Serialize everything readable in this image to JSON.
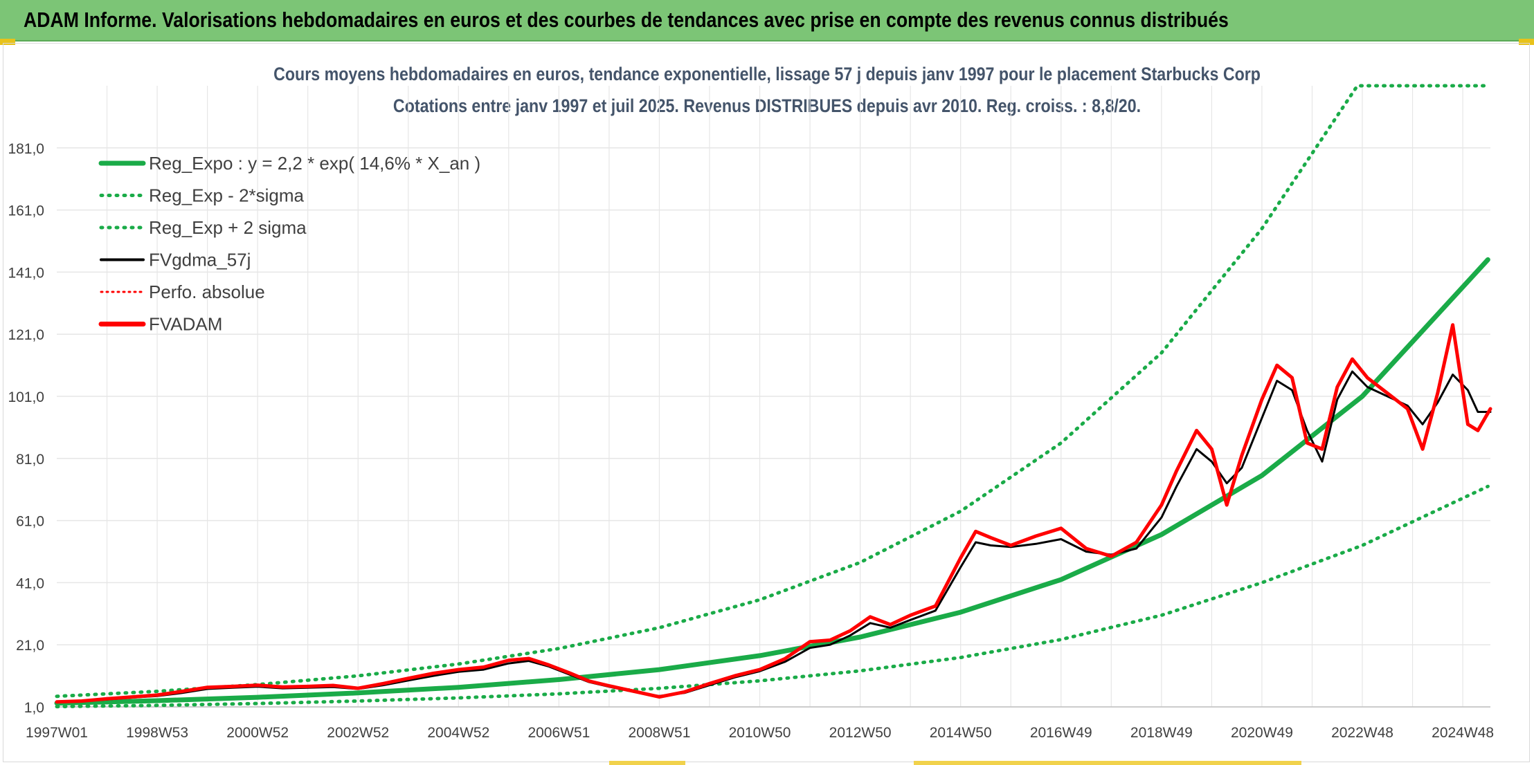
{
  "header": {
    "title": "ADAM Informe. Valorisations hebdomadaires en euros et des courbes de tendances avec prise en compte des revenus connus distribués"
  },
  "colors": {
    "header_bg": "#7cc576",
    "trend": "#1aab48",
    "smoothed": "#000000",
    "fvadam": "#ff0000",
    "axis_text": "#404040",
    "title_text": "#44546a",
    "grid": "#e6e6e6"
  },
  "chart_data": {
    "type": "line",
    "title": "Cours moyens hebdomadaires en euros, tendance exponentielle, lissage 57 j depuis janv 1997 pour le placement Starbucks Corp",
    "subtitle": "Cotations entre janv 1997 et juil 2025. Revenus DISTRIBUES depuis avr 2010. Reg. croiss. : 8,8/20.",
    "xlabel": "",
    "ylabel": "",
    "xlim": [
      1997.0,
      2025.55
    ],
    "ylim": [
      1.0,
      201.0
    ],
    "y_ticks": [
      "1,0",
      "21,0",
      "41,0",
      "61,0",
      "81,0",
      "101,0",
      "121,0",
      "141,0",
      "161,0",
      "181,0"
    ],
    "y_tick_values": [
      1,
      21,
      41,
      61,
      81,
      101,
      121,
      141,
      161,
      181
    ],
    "x_ticks": [
      "1997W01",
      "1998W53",
      "2000W52",
      "2002W52",
      "2004W52",
      "2006W51",
      "2008W51",
      "2010W50",
      "2012W50",
      "2014W50",
      "2016W49",
      "2018W49",
      "2020W49",
      "2022W48",
      "2024W48"
    ],
    "x_tick_values": [
      1997.0,
      1999.0,
      2001.0,
      2003.0,
      2005.0,
      2007.0,
      2009.0,
      2011.0,
      2013.0,
      2015.0,
      2017.0,
      2019.0,
      2021.0,
      2023.0,
      2025.0
    ],
    "grid": true,
    "legend_position": "top-left",
    "legend": [
      {
        "label": "Reg_Expo : y = 2,2 * exp( 14,6% *  X_an )",
        "style": "solid-thick",
        "color": "#1aab48"
      },
      {
        "label": "Reg_Exp - 2*sigma",
        "style": "dotted",
        "color": "#1aab48"
      },
      {
        "label": "Reg_Exp + 2 sigma",
        "style": "dotted",
        "color": "#1aab48"
      },
      {
        "label": "FVgdma_57j",
        "style": "solid",
        "color": "#000000"
      },
      {
        "label": "Perfo. absolue",
        "style": "dotted",
        "color": "#ff0000"
      },
      {
        "label": "FVADAM",
        "style": "solid-thick",
        "color": "#ff0000"
      }
    ],
    "series": [
      {
        "name": "Reg_Expo : y = 2,2 * exp( 14,6% *  X_an )",
        "x": [
          1997.0,
          1999.0,
          2001.0,
          2003.0,
          2005.0,
          2007.0,
          2009.0,
          2011.0,
          2013.0,
          2015.0,
          2017.0,
          2019.0,
          2021.0,
          2023.0,
          2025.5
        ],
        "values": [
          2.2,
          3.0,
          4.1,
          5.5,
          7.3,
          9.8,
          13.0,
          17.5,
          23.5,
          31.5,
          42.0,
          56.5,
          75.5,
          101.0,
          145.0
        ]
      },
      {
        "name": "Reg_Exp - 2*sigma",
        "x": [
          1997.0,
          1999.0,
          2001.0,
          2003.0,
          2005.0,
          2007.0,
          2009.0,
          2011.0,
          2013.0,
          2015.0,
          2017.0,
          2019.0,
          2021.0,
          2023.0,
          2025.5
        ],
        "values": [
          1.1,
          1.5,
          2.1,
          2.9,
          3.9,
          5.2,
          7.0,
          9.4,
          12.6,
          16.9,
          22.7,
          30.5,
          41.0,
          53.0,
          72.0
        ]
      },
      {
        "name": "Reg_Exp + 2 sigma",
        "x": [
          1997.0,
          1999.0,
          2001.0,
          2003.0,
          2005.0,
          2007.0,
          2009.0,
          2011.0,
          2013.0,
          2015.0,
          2017.0,
          2019.0,
          2021.0,
          2022.9,
          2025.5
        ],
        "values": [
          4.4,
          6.0,
          8.2,
          11.0,
          14.8,
          19.8,
          26.5,
          35.5,
          47.5,
          64.0,
          86.0,
          115.0,
          155.0,
          201.0,
          201.0
        ]
      },
      {
        "name": "FVgdma_57j",
        "x": [
          1997.0,
          1997.5,
          1998.0,
          1998.5,
          1999.0,
          1999.5,
          2000.0,
          2000.5,
          2001.0,
          2001.5,
          2002.0,
          2002.5,
          2003.0,
          2003.5,
          2004.0,
          2004.5,
          2005.0,
          2005.5,
          2006.0,
          2006.4,
          2006.8,
          2007.2,
          2007.6,
          2008.0,
          2008.5,
          2009.0,
          2009.5,
          2010.0,
          2010.5,
          2011.0,
          2011.5,
          2012.0,
          2012.4,
          2012.8,
          2013.2,
          2013.6,
          2014.0,
          2014.5,
          2015.0,
          2015.3,
          2015.6,
          2016.0,
          2016.5,
          2017.0,
          2017.5,
          2018.0,
          2018.5,
          2019.0,
          2019.3,
          2019.7,
          2020.0,
          2020.3,
          2020.6,
          2021.0,
          2021.3,
          2021.6,
          2021.9,
          2022.2,
          2022.5,
          2022.8,
          2023.1,
          2023.5,
          2023.9,
          2024.2,
          2024.5,
          2024.8,
          2025.1,
          2025.3,
          2025.55
        ],
        "values": [
          2.5,
          2.8,
          3.4,
          4.0,
          4.5,
          5.5,
          6.8,
          7.2,
          7.5,
          7.0,
          7.2,
          7.4,
          6.8,
          8.0,
          9.5,
          11.0,
          12.3,
          13.0,
          15.0,
          15.8,
          14.0,
          11.5,
          9.0,
          7.5,
          5.8,
          4.5,
          5.5,
          8.0,
          10.5,
          12.5,
          15.5,
          20.0,
          21.0,
          24.0,
          28.0,
          26.5,
          29.0,
          32.0,
          46.0,
          54.0,
          53.0,
          52.5,
          53.5,
          55.0,
          51.0,
          50.0,
          52.0,
          62.0,
          72.0,
          84.0,
          80.0,
          73.0,
          78.0,
          94.0,
          106.0,
          103.0,
          90.0,
          80.0,
          100.0,
          109.0,
          104.0,
          101.0,
          98.0,
          92.0,
          99.0,
          108.0,
          103.0,
          96.0,
          96.0
        ]
      },
      {
        "name": "FVADAM",
        "x": [
          1997.0,
          1997.5,
          1998.0,
          1998.5,
          1999.0,
          1999.5,
          2000.0,
          2000.5,
          2001.0,
          2001.5,
          2002.0,
          2002.5,
          2003.0,
          2003.5,
          2004.0,
          2004.5,
          2005.0,
          2005.5,
          2006.0,
          2006.4,
          2006.8,
          2007.2,
          2007.6,
          2008.0,
          2008.5,
          2009.0,
          2009.5,
          2010.0,
          2010.5,
          2011.0,
          2011.5,
          2012.0,
          2012.4,
          2012.8,
          2013.2,
          2013.6,
          2014.0,
          2014.5,
          2015.0,
          2015.3,
          2015.6,
          2016.0,
          2016.5,
          2017.0,
          2017.5,
          2018.0,
          2018.5,
          2019.0,
          2019.3,
          2019.7,
          2020.0,
          2020.3,
          2020.6,
          2021.0,
          2021.3,
          2021.6,
          2021.9,
          2022.2,
          2022.5,
          2022.8,
          2023.1,
          2023.5,
          2023.9,
          2024.2,
          2024.5,
          2024.8,
          2025.1,
          2025.3,
          2025.55
        ],
        "values": [
          2.6,
          2.9,
          3.6,
          4.2,
          4.8,
          6.0,
          7.3,
          7.6,
          8.0,
          7.4,
          7.6,
          7.9,
          7.0,
          8.5,
          10.2,
          11.8,
          13.0,
          13.8,
          16.0,
          16.6,
          14.5,
          12.0,
          9.3,
          7.8,
          6.0,
          4.2,
          5.8,
          8.5,
          11.0,
          13.0,
          16.5,
          22.0,
          22.5,
          25.5,
          30.0,
          27.5,
          30.5,
          33.5,
          49.0,
          57.5,
          55.5,
          53.0,
          56.0,
          58.5,
          52.0,
          49.5,
          54.0,
          66.0,
          77.0,
          90.0,
          84.0,
          66.0,
          82.0,
          100.0,
          111.0,
          107.0,
          86.0,
          84.0,
          104.0,
          113.0,
          107.0,
          102.0,
          97.0,
          84.0,
          102.0,
          124.0,
          92.0,
          90.0,
          97.0
        ]
      }
    ]
  }
}
